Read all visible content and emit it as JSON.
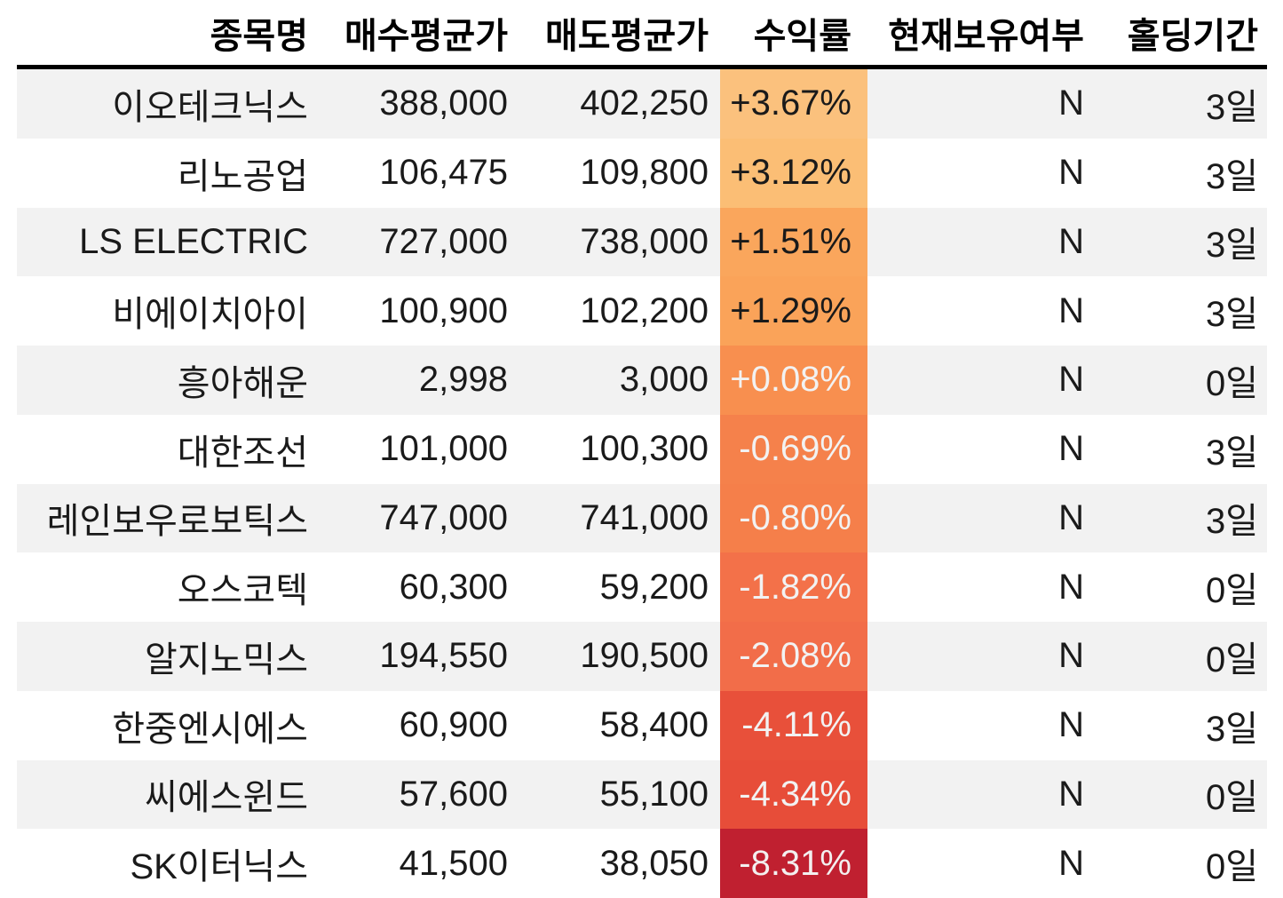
{
  "chart_data": {
    "type": "table",
    "description_note": "Stock backtest result table with heatmap-colored return column",
    "columns": [
      {
        "key": "name",
        "label": "종목명"
      },
      {
        "key": "buy_avg",
        "label": "매수평균가"
      },
      {
        "key": "sell_avg",
        "label": "매도평균가"
      },
      {
        "key": "return_pct",
        "label": "수익률"
      },
      {
        "key": "is_holding",
        "label": "현재보유여부"
      },
      {
        "key": "holding_period",
        "label": "홀딩기간"
      }
    ],
    "rows": [
      {
        "cells": [
          "이오테크닉스",
          "388,000",
          "402,250",
          "+3.67%",
          "N",
          "3일"
        ],
        "buy_avg": 388000,
        "sell_avg": 402250,
        "return_value": 3.67,
        "holding_days": 3,
        "return_bg": "#fbc17d",
        "return_fg": "#1a1a1a"
      },
      {
        "cells": [
          "리노공업",
          "106,475",
          "109,800",
          "+3.12%",
          "N",
          "3일"
        ],
        "buy_avg": 106475,
        "sell_avg": 109800,
        "return_value": 3.12,
        "holding_days": 3,
        "return_bg": "#fbbe75",
        "return_fg": "#1a1a1a"
      },
      {
        "cells": [
          "LS ELECTRIC",
          "727,000",
          "738,000",
          "+1.51%",
          "N",
          "3일"
        ],
        "buy_avg": 727000,
        "sell_avg": 738000,
        "return_value": 1.51,
        "holding_days": 3,
        "return_bg": "#faa65c",
        "return_fg": "#1a1a1a"
      },
      {
        "cells": [
          "비에이치아이",
          "100,900",
          "102,200",
          "+1.29%",
          "N",
          "3일"
        ],
        "buy_avg": 100900,
        "sell_avg": 102200,
        "return_value": 1.29,
        "holding_days": 3,
        "return_bg": "#faa359",
        "return_fg": "#1a1a1a"
      },
      {
        "cells": [
          "흥아해운",
          "2,998",
          "3,000",
          "+0.08%",
          "N",
          "0일"
        ],
        "buy_avg": 2998,
        "sell_avg": 3000,
        "return_value": 0.08,
        "holding_days": 0,
        "return_bg": "#f88f4f",
        "return_fg": "#f2f2f2"
      },
      {
        "cells": [
          "대한조선",
          "101,000",
          "100,300",
          "-0.69%",
          "N",
          "3일"
        ],
        "buy_avg": 101000,
        "sell_avg": 100300,
        "return_value": -0.69,
        "holding_days": 3,
        "return_bg": "#f5814b",
        "return_fg": "#f2f2f2"
      },
      {
        "cells": [
          "레인보우로보틱스",
          "747,000",
          "741,000",
          "-0.80%",
          "N",
          "3일"
        ],
        "buy_avg": 747000,
        "sell_avg": 741000,
        "return_value": -0.8,
        "holding_days": 3,
        "return_bg": "#f57f4a",
        "return_fg": "#f2f2f2"
      },
      {
        "cells": [
          "오스코텍",
          "60,300",
          "59,200",
          "-1.82%",
          "N",
          "0일"
        ],
        "buy_avg": 60300,
        "sell_avg": 59200,
        "return_value": -1.82,
        "holding_days": 0,
        "return_bg": "#f37149",
        "return_fg": "#f2f2f2"
      },
      {
        "cells": [
          "알지노믹스",
          "194,550",
          "190,500",
          "-2.08%",
          "N",
          "0일"
        ],
        "buy_avg": 194550,
        "sell_avg": 190500,
        "return_value": -2.08,
        "holding_days": 0,
        "return_bg": "#f26d49",
        "return_fg": "#f2f2f2"
      },
      {
        "cells": [
          "한중엔시에스",
          "60,900",
          "58,400",
          "-4.11%",
          "N",
          "3일"
        ],
        "buy_avg": 60900,
        "sell_avg": 58400,
        "return_value": -4.11,
        "holding_days": 3,
        "return_bg": "#e8503a",
        "return_fg": "#f2f2f2"
      },
      {
        "cells": [
          "씨에스윈드",
          "57,600",
          "55,100",
          "-4.34%",
          "N",
          "0일"
        ],
        "buy_avg": 57600,
        "sell_avg": 55100,
        "return_value": -4.34,
        "holding_days": 0,
        "return_bg": "#e74d39",
        "return_fg": "#f2f2f2"
      },
      {
        "cells": [
          "SK이터닉스",
          "41,500",
          "38,050",
          "-8.31%",
          "N",
          "0일"
        ],
        "buy_avg": 41500,
        "sell_avg": 38050,
        "return_value": -8.31,
        "holding_days": 0,
        "return_bg": "#c02030",
        "return_fg": "#f3efef"
      }
    ],
    "layout": {
      "stripe_color": "#f2f2f2",
      "header_rule_color": "#000000",
      "heatmap_column": "return_pct",
      "heatmap_scale_hint": "light orange (high positive) to dark red (large negative)"
    }
  }
}
